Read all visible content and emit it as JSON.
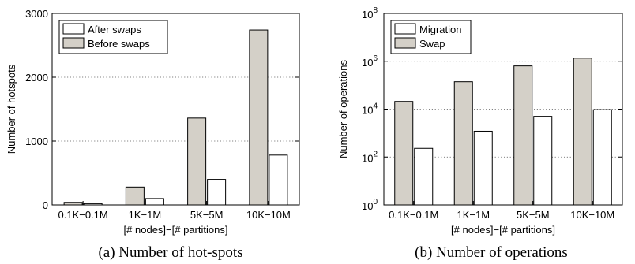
{
  "chart_data": [
    {
      "type": "bar",
      "categories": [
        "0.1K−0.1M",
        "1K−1M",
        "5K−5M",
        "10K−10M"
      ],
      "series": [
        {
          "name": "Before swaps",
          "values": [
            40,
            280,
            1360,
            2740
          ],
          "color": "#d4d0c8"
        },
        {
          "name": "After swaps",
          "values": [
            20,
            100,
            400,
            780
          ],
          "color": "#ffffff"
        }
      ],
      "legend_order": [
        1,
        0
      ],
      "title": "",
      "xlabel": "[# nodes]−[# partitions]",
      "ylabel": "Number of hotspots",
      "ylim": [
        0,
        3000
      ],
      "yticks": [
        "0",
        "1000",
        "2000",
        "3000"
      ],
      "log_y": false,
      "grid": "dotted-horizontal",
      "legend_position": "top-left",
      "caption": "(a) Number of hot-spots"
    },
    {
      "type": "bar",
      "categories": [
        "0.1K−0.1M",
        "1K−1M",
        "5K−5M",
        "10K−10M"
      ],
      "series": [
        {
          "name": "Swap",
          "values": [
            21000,
            140000,
            640000,
            1350000
          ],
          "color": "#d4d0c8"
        },
        {
          "name": "Migration",
          "values": [
            230,
            1200,
            5000,
            9500
          ],
          "color": "#ffffff"
        }
      ],
      "legend_order": [
        1,
        0
      ],
      "title": "",
      "xlabel": "[# nodes]−[# partitions]",
      "ylabel": "Number of operations",
      "ylim": [
        1,
        100000000
      ],
      "yticks": [
        {
          "base": "10",
          "exp": "0"
        },
        {
          "base": "10",
          "exp": "2"
        },
        {
          "base": "10",
          "exp": "4"
        },
        {
          "base": "10",
          "exp": "6"
        },
        {
          "base": "10",
          "exp": "8"
        }
      ],
      "log_y": true,
      "grid": "dotted-horizontal",
      "legend_position": "top-left",
      "caption": "(b) Number of operations"
    }
  ]
}
